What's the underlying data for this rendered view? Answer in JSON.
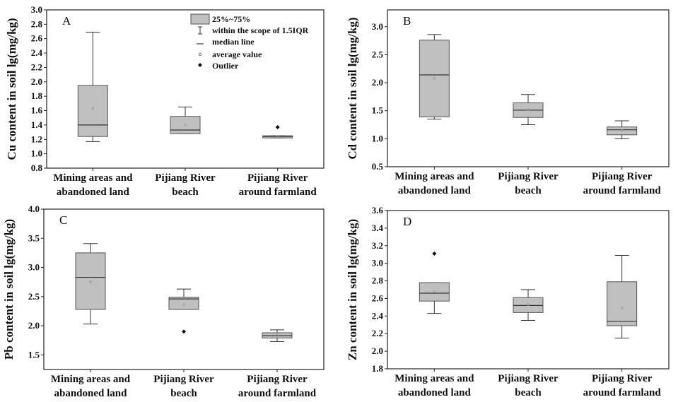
{
  "legend": {
    "items": [
      {
        "icon": "box-swatch",
        "label": "25%~75%"
      },
      {
        "icon": "whisker-glyph",
        "label": "within the scope of 1.5IQR"
      },
      {
        "icon": "median-line-glyph",
        "label": "median line"
      },
      {
        "icon": "mean-circle-glyph",
        "label": "average value"
      },
      {
        "icon": "outlier-diamond-glyph",
        "label": "Outlier"
      }
    ]
  },
  "colors": {
    "box_fill": "#c0c0c0",
    "box_stroke": "#555555",
    "mean_marker": "#999999",
    "outlier": "#111111"
  },
  "chart_data": [
    {
      "type": "box",
      "panel_label": "A",
      "ylabel": "Cu content in soil lg(mg/kg)",
      "ylim": [
        0.8,
        3.0
      ],
      "yticks": [
        "0.8",
        "1.0",
        "1.2",
        "1.4",
        "1.6",
        "1.8",
        "2.0",
        "2.2",
        "2.4",
        "2.6",
        "2.8",
        "3.0"
      ],
      "categories": [
        [
          "Mining areas and",
          "abandoned land"
        ],
        [
          "Pijiang River",
          "beach"
        ],
        [
          "Pijiang River",
          "around farmland"
        ]
      ],
      "boxes": [
        {
          "min": 1.17,
          "q1": 1.24,
          "median": 1.4,
          "q3": 1.95,
          "max": 2.69,
          "mean": 1.63,
          "outliers": []
        },
        {
          "min": 1.28,
          "q1": 1.28,
          "median": 1.33,
          "q3": 1.52,
          "max": 1.65,
          "mean": 1.4,
          "outliers": []
        },
        {
          "min": 1.22,
          "q1": 1.22,
          "median": 1.24,
          "q3": 1.25,
          "max": 1.25,
          "mean": 1.24,
          "outliers": [
            1.37
          ]
        }
      ]
    },
    {
      "type": "box",
      "panel_label": "B",
      "ylabel": "Cd content in soil lg(mg/kg)",
      "ylim": [
        0.5,
        3.3
      ],
      "yticks": [
        "0.5",
        "1.0",
        "1.5",
        "2.0",
        "2.5",
        "3.0"
      ],
      "categories": [
        [
          "Mining areas and",
          "abandoned land"
        ],
        [
          "Pijiang River",
          "beach"
        ],
        [
          "Pijiang River",
          "around farmland"
        ]
      ],
      "boxes": [
        {
          "min": 1.35,
          "q1": 1.39,
          "median": 2.14,
          "q3": 2.76,
          "max": 2.86,
          "mean": 2.08,
          "outliers": []
        },
        {
          "min": 1.25,
          "q1": 1.38,
          "median": 1.51,
          "q3": 1.64,
          "max": 1.79,
          "mean": 1.52,
          "outliers": []
        },
        {
          "min": 1.0,
          "q1": 1.07,
          "median": 1.16,
          "q3": 1.21,
          "max": 1.32,
          "mean": 1.15,
          "outliers": []
        }
      ]
    },
    {
      "type": "box",
      "panel_label": "C",
      "ylabel": "Pb content in soil lg(mg/kg)",
      "ylim": [
        1.25,
        4.0
      ],
      "yticks": [
        "1.5",
        "2.0",
        "2.5",
        "3.0",
        "3.5",
        "4.0"
      ],
      "categories": [
        [
          "Mining areas and",
          "abandoned land"
        ],
        [
          "Pijiang River",
          "beach"
        ],
        [
          "Pijiang River",
          "around farmland"
        ]
      ],
      "boxes": [
        {
          "min": 2.03,
          "q1": 2.28,
          "median": 2.83,
          "q3": 3.25,
          "max": 3.41,
          "mean": 2.75,
          "outliers": []
        },
        {
          "min": 2.28,
          "q1": 2.28,
          "median": 2.46,
          "q3": 2.49,
          "max": 2.63,
          "mean": 2.36,
          "outliers": [
            1.9
          ]
        },
        {
          "min": 1.73,
          "q1": 1.79,
          "median": 1.83,
          "q3": 1.88,
          "max": 1.93,
          "mean": 1.83,
          "outliers": []
        }
      ]
    },
    {
      "type": "box",
      "panel_label": "D",
      "ylabel": "Zn content in soil lg(mg/kg)",
      "ylim": [
        1.8,
        3.6
      ],
      "yticks": [
        "1.8",
        "2.0",
        "2.2",
        "2.4",
        "2.6",
        "2.8",
        "3.0",
        "3.2",
        "3.4",
        "3.6"
      ],
      "categories": [
        [
          "Mining areas and",
          "abandoned land"
        ],
        [
          "Pijiang River",
          "beach"
        ],
        [
          "Pijiang River",
          "around farmland"
        ]
      ],
      "boxes": [
        {
          "min": 2.43,
          "q1": 2.57,
          "median": 2.66,
          "q3": 2.78,
          "max": 2.78,
          "mean": 2.68,
          "outliers": [
            3.11
          ]
        },
        {
          "min": 2.35,
          "q1": 2.44,
          "median": 2.52,
          "q3": 2.61,
          "max": 2.7,
          "mean": 2.53,
          "outliers": []
        },
        {
          "min": 2.15,
          "q1": 2.29,
          "median": 2.34,
          "q3": 2.79,
          "max": 3.09,
          "mean": 2.49,
          "outliers": []
        }
      ]
    }
  ]
}
